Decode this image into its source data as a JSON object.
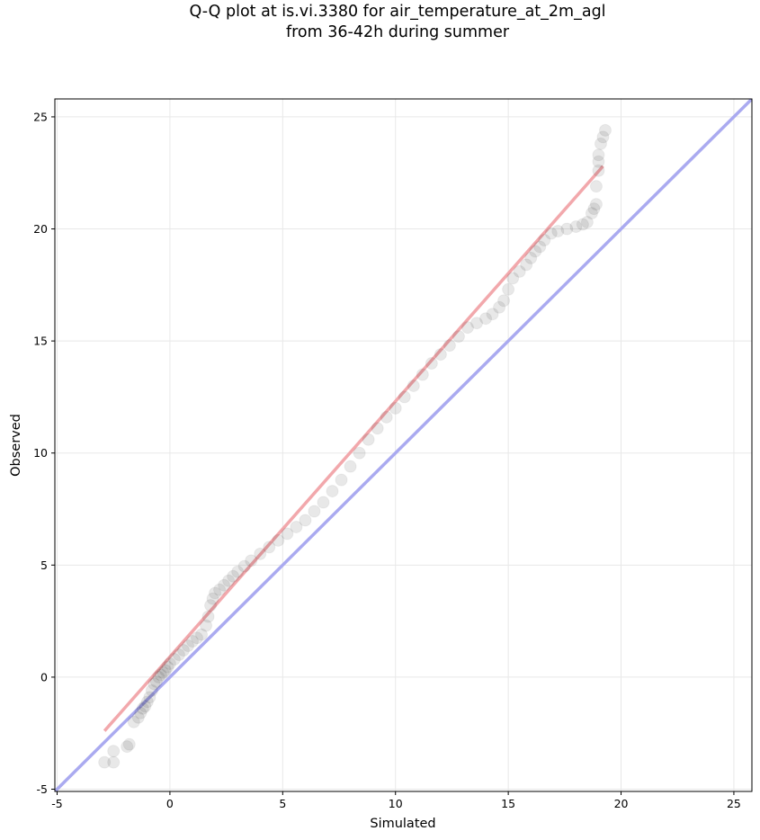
{
  "title": {
    "line1": "Q-Q plot at is.vi.3380 for air_temperature_at_2m_agl",
    "line2": "from 36-42h during summer"
  },
  "chart_data": {
    "type": "scatter",
    "title": "Q-Q plot at is.vi.3380 for air_temperature_at_2m_agl from 36-42h during summer",
    "xlabel": "Simulated",
    "ylabel": "Observed",
    "xlim": [
      -5.1,
      25.8
    ],
    "ylim": [
      -5.1,
      25.8
    ],
    "xticks": [
      -5,
      0,
      5,
      10,
      15,
      20,
      25
    ],
    "yticks": [
      -5,
      0,
      5,
      10,
      15,
      20,
      25
    ],
    "grid": true,
    "points": {
      "color": "#000000",
      "note": "quantile markers, semi-transparent black",
      "x": [
        -2.9,
        -2.5,
        -2.5,
        -1.9,
        -1.8,
        -1.6,
        -1.4,
        -1.3,
        -1.2,
        -1.1,
        -1.0,
        -0.9,
        -0.8,
        -0.7,
        -0.6,
        -0.5,
        -0.4,
        -0.3,
        -0.2,
        -0.1,
        0.0,
        0.2,
        0.4,
        0.6,
        0.8,
        1.0,
        1.2,
        1.4,
        1.6,
        1.7,
        1.8,
        1.9,
        2.0,
        2.2,
        2.4,
        2.6,
        2.8,
        3.0,
        3.3,
        3.6,
        4.0,
        4.4,
        4.8,
        5.2,
        5.6,
        6.0,
        6.4,
        6.8,
        7.2,
        7.6,
        8.0,
        8.4,
        8.8,
        9.2,
        9.6,
        10.0,
        10.4,
        10.8,
        11.2,
        11.6,
        12.0,
        12.4,
        12.8,
        13.2,
        13.6,
        14.0,
        14.3,
        14.6,
        14.8,
        15.0,
        15.2,
        15.5,
        15.8,
        16.0,
        16.2,
        16.4,
        16.6,
        16.9,
        17.2,
        17.6,
        18.0,
        18.3,
        18.5,
        18.7,
        18.8,
        18.9,
        18.9,
        19.0,
        19.0,
        19.0,
        19.1,
        19.2,
        19.3
      ],
      "y": [
        -3.8,
        -3.8,
        -3.3,
        -3.1,
        -3.0,
        -2.0,
        -1.8,
        -1.6,
        -1.4,
        -1.3,
        -1.1,
        -0.9,
        -0.6,
        -0.3,
        -0.2,
        0.0,
        0.1,
        0.2,
        0.3,
        0.45,
        0.6,
        0.8,
        1.0,
        1.2,
        1.4,
        1.6,
        1.75,
        1.9,
        2.3,
        2.7,
        3.2,
        3.5,
        3.75,
        3.9,
        4.1,
        4.3,
        4.5,
        4.7,
        4.95,
        5.2,
        5.5,
        5.8,
        6.1,
        6.4,
        6.7,
        7.0,
        7.4,
        7.8,
        8.3,
        8.8,
        9.4,
        10.0,
        10.6,
        11.1,
        11.6,
        12.0,
        12.5,
        13.0,
        13.5,
        14.0,
        14.4,
        14.8,
        15.2,
        15.6,
        15.8,
        16.0,
        16.2,
        16.5,
        16.8,
        17.3,
        17.8,
        18.1,
        18.4,
        18.7,
        19.0,
        19.2,
        19.5,
        19.8,
        19.9,
        20.0,
        20.1,
        20.2,
        20.3,
        20.7,
        20.9,
        21.1,
        21.9,
        22.6,
        23.0,
        23.3,
        23.8,
        24.1,
        24.4
      ]
    },
    "lines": [
      {
        "kind": "identity-line",
        "color": "#aaaaf0",
        "x": [
          -5.1,
          25.8
        ],
        "y": [
          -5.1,
          25.8
        ]
      },
      {
        "kind": "fit-line",
        "color": "#f2a8ac",
        "x": [
          -2.9,
          19.2
        ],
        "y": [
          -2.4,
          22.8
        ]
      }
    ]
  }
}
